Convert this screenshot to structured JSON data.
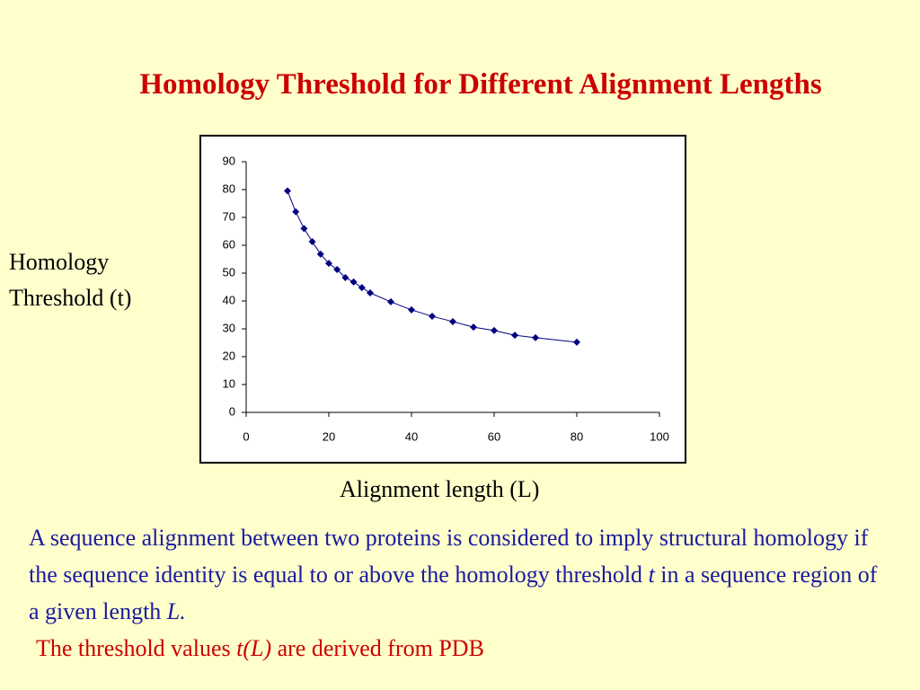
{
  "title": "Homology Threshold for Different Alignment Lengths",
  "chart_data": {
    "type": "line",
    "ylabel": "Homology Threshold (t)",
    "xlabel": "Alignment length (L)",
    "x": [
      10,
      12,
      14,
      16,
      18,
      20,
      22,
      24,
      26,
      28,
      30,
      35,
      40,
      45,
      50,
      55,
      60,
      65,
      70,
      80
    ],
    "series": [
      {
        "color": "#000080",
        "values": [
          79.5,
          72,
          66,
          61.3,
          56.8,
          53.5,
          51.3,
          48.4,
          46.8,
          44.8,
          42.9,
          39.7,
          36.8,
          34.5,
          32.6,
          30.6,
          29.4,
          27.7,
          26.8,
          25.2
        ]
      }
    ],
    "xlim": [
      0,
      100
    ],
    "xticks": [
      0,
      20,
      40,
      60,
      80,
      100
    ],
    "ylim": [
      0,
      90
    ],
    "yticks": [
      0,
      10,
      20,
      30,
      40,
      50,
      60,
      70,
      80,
      90
    ],
    "grid": false
  },
  "paragraph": [
    "A sequence alignment between two proteins is considered to imply structural homology if the sequence identity is equal to or above the homology threshold ",
    "t",
    " in a sequence region of a given length ",
    "L."
  ],
  "note": [
    "The threshold values ",
    "t(L)",
    " are derived from PDB"
  ]
}
